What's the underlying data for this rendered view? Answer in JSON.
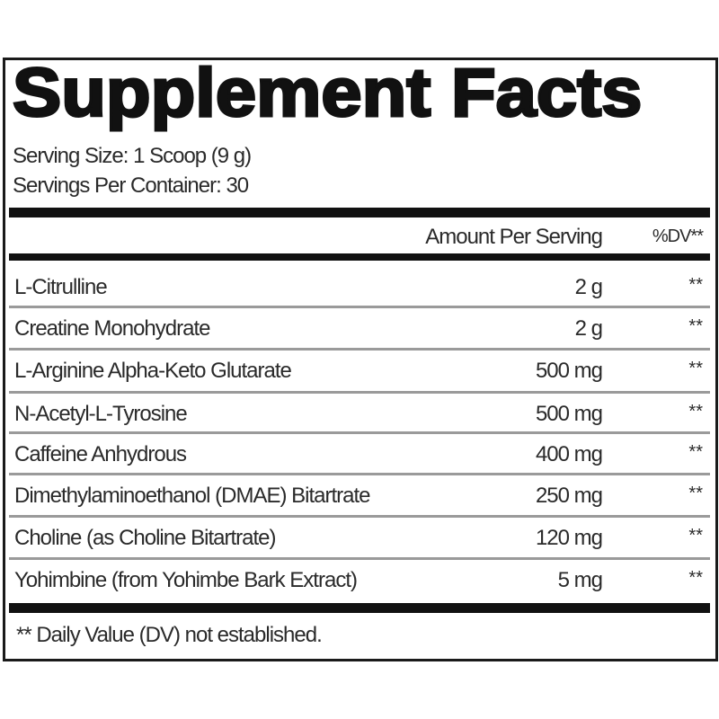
{
  "title": "Supplement Facts",
  "serving_size": "Serving Size: 1 Scoop (9 g)",
  "servings_per_container": "Servings Per Container: 30",
  "header": {
    "amount": "Amount Per Serving",
    "dv": "%DV**"
  },
  "rows": [
    {
      "name": "L-Citrulline",
      "amount": "2 g",
      "dv": "**"
    },
    {
      "name": "Creatine Monohydrate",
      "amount": "2 g",
      "dv": "**"
    },
    {
      "name": "L-Arginine Alpha-Keto Glutarate",
      "amount": "500 mg",
      "dv": "**"
    },
    {
      "name": "N-Acetyl-L-Tyrosine",
      "amount": "500 mg",
      "dv": "**"
    },
    {
      "name": "Caffeine Anhydrous",
      "amount": "400 mg",
      "dv": "**"
    },
    {
      "name": "Dimethylaminoethanol (DMAE) Bitartrate",
      "amount": "250 mg",
      "dv": "**"
    },
    {
      "name": "Choline (as Choline Bitartrate)",
      "amount": "120 mg",
      "dv": "**"
    },
    {
      "name": "Yohimbine (from Yohimbe Bark Extract)",
      "amount": "5 mg",
      "dv": "**"
    }
  ],
  "footnote": "** Daily Value (DV) not established."
}
